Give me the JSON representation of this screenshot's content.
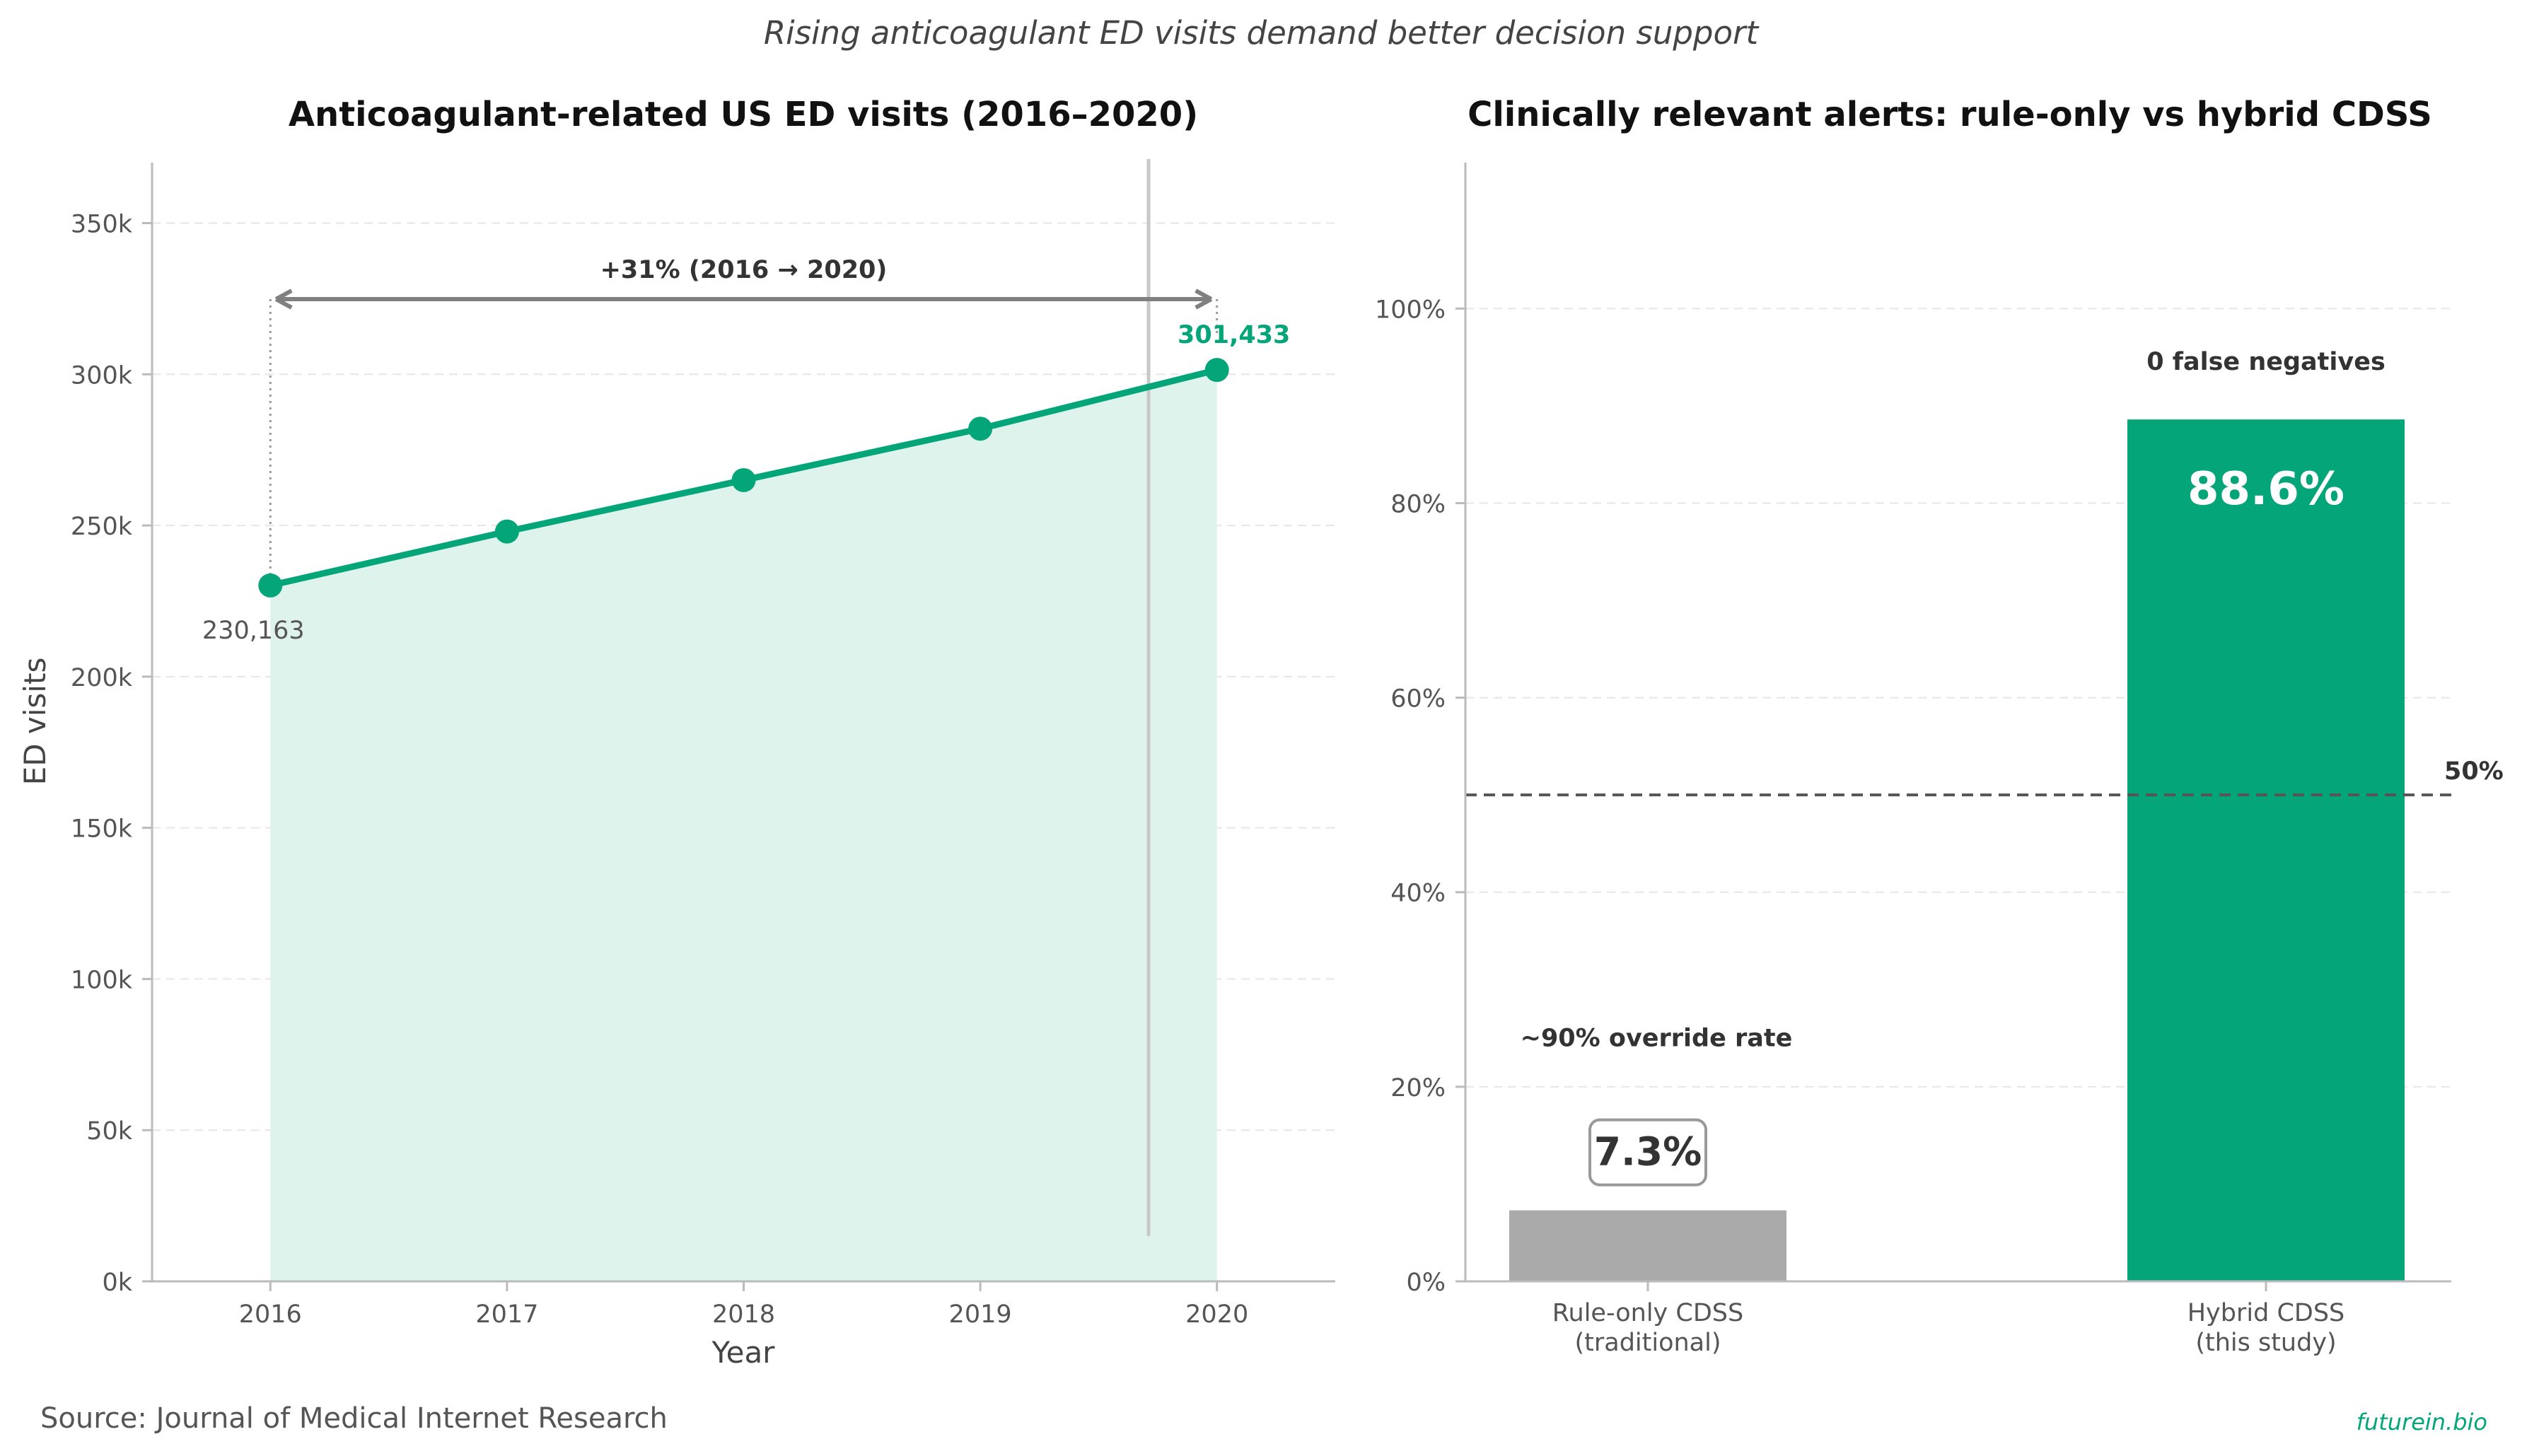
{
  "suptitle": "Rising anticoagulant ED visits demand better decision support",
  "source": "Source: Journal of Medical Internet Research",
  "watermark": "futurein.bio",
  "colors": {
    "accent": "#05a57a",
    "accent_fill": "#dff3ed",
    "gray_bar": "#aaaaaa",
    "text_dark": "#333333",
    "text_mid": "#555555",
    "grid": "#e6e6e6",
    "arrow": "#808080"
  },
  "chart_data": [
    {
      "type": "line",
      "title": "Anticoagulant-related US ED visits (2016–2020)",
      "xlabel": "Year",
      "ylabel": "ED visits",
      "x": [
        2016,
        2017,
        2018,
        2019,
        2020
      ],
      "values": [
        230163,
        248000,
        265000,
        282000,
        301433
      ],
      "xlim": [
        2015.5,
        2020.5
      ],
      "ylim": [
        0,
        370000
      ],
      "yticks": [
        0,
        50000,
        100000,
        150000,
        200000,
        250000,
        300000,
        350000
      ],
      "yticklabels": [
        "0k",
        "50k",
        "100k",
        "150k",
        "200k",
        "250k",
        "300k",
        "350k"
      ],
      "xticklabels": [
        "2016",
        "2017",
        "2018",
        "2019",
        "2020"
      ],
      "grid": true,
      "area_fill": true,
      "annotations": {
        "start_label": "230,163",
        "end_label": "301,433",
        "change_label": "+31% (2016 → 2020)"
      }
    },
    {
      "type": "bar",
      "title": "Clinically relevant alerts: rule-only vs hybrid CDSS",
      "categories": [
        "Rule-only CDSS\n(traditional)",
        "Hybrid CDSS\n(this study)"
      ],
      "values": [
        7.3,
        88.6
      ],
      "value_labels": [
        "7.3%",
        "88.6%"
      ],
      "ylim": [
        0,
        115
      ],
      "yticks": [
        0,
        20,
        40,
        60,
        80,
        100
      ],
      "yticklabels": [
        "0%",
        "20%",
        "40%",
        "60%",
        "80%",
        "100%"
      ],
      "grid": true,
      "reference_line": {
        "value": 50,
        "label": "50%"
      },
      "bar_notes": [
        "~90% override rate",
        "0 false negatives"
      ]
    }
  ]
}
